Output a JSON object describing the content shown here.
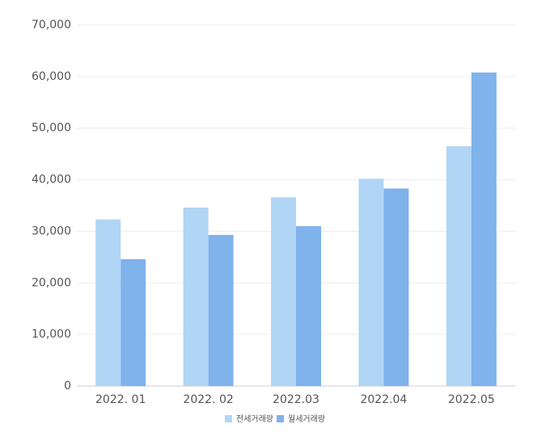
{
  "chart_data": {
    "type": "bar",
    "categories": [
      "2022. 01",
      "2022. 02",
      "2022.03",
      "2022.04",
      "2022.05"
    ],
    "series": [
      {
        "name": "전세거래량",
        "color": "#b1d5f5",
        "values": [
          32300,
          34600,
          36600,
          40200,
          46500
        ]
      },
      {
        "name": "월세거래량",
        "color": "#80b2ec",
        "values": [
          24600,
          29300,
          31000,
          38300,
          60800
        ]
      }
    ],
    "ylim": [
      0,
      70000
    ],
    "yticks": [
      0,
      {
        "value": 10000,
        "label": "10,000"
      },
      {
        "value": 20000,
        "label": "20,000"
      },
      {
        "value": 30000,
        "label": "30,000"
      },
      {
        "value": 40000,
        "label": "40,000"
      },
      {
        "value": 50000,
        "label": "50,000"
      },
      {
        "value": 60000,
        "label": "60,000"
      },
      {
        "value": 70000,
        "label": "70,000"
      }
    ],
    "grid": true,
    "legend": "bottom"
  }
}
